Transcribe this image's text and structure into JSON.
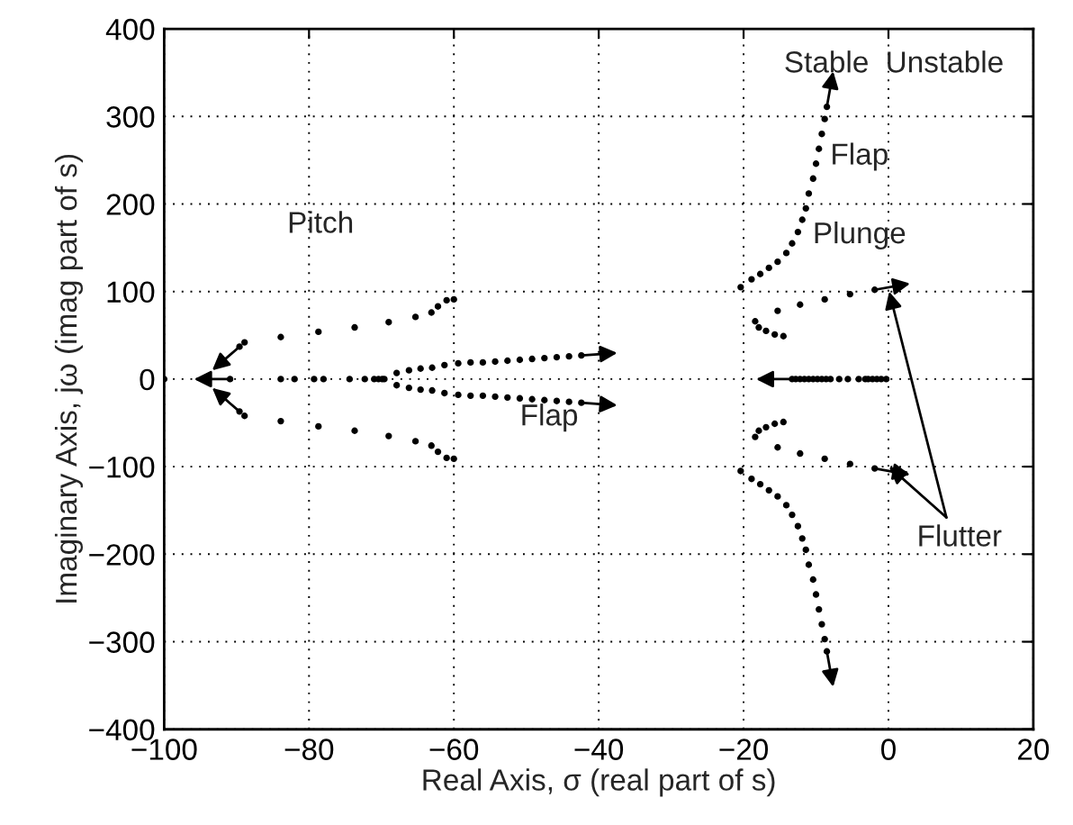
{
  "chart_data": {
    "type": "scatter",
    "xlabel": "Real Axis, σ (real part of s)",
    "ylabel": "Imaginary Axis, jω (imag part of s)",
    "xlim": [
      -100,
      20
    ],
    "ylim": [
      -400,
      400
    ],
    "xticks": [
      {
        "value": -100,
        "label": "−100"
      },
      {
        "value": -80,
        "label": "−80"
      },
      {
        "value": -60,
        "label": "−60"
      },
      {
        "value": -40,
        "label": "−40"
      },
      {
        "value": -20,
        "label": "−20"
      },
      0,
      20
    ],
    "yticks": [
      {
        "value": -400,
        "label": "−400"
      },
      {
        "value": -300,
        "label": "−300"
      },
      {
        "value": -200,
        "label": "−200"
      },
      {
        "value": -100,
        "label": "−100"
      },
      0,
      100,
      200,
      300,
      400
    ],
    "grid": true,
    "marker": "circle",
    "series": [
      {
        "color": "#000000",
        "x": [
          -60.0,
          -61.0,
          -62.2,
          -63.1,
          -65.3,
          -69.0,
          -73.7,
          -78.7,
          -83.9,
          -88.9,
          -89.6
        ],
        "values": [
          91,
          90,
          83,
          76,
          71,
          65,
          59,
          54,
          48,
          42,
          37
        ]
      },
      {
        "color": "#000000",
        "x": [
          -60.0,
          -61.0,
          -62.2,
          -63.1,
          -65.3,
          -69.0,
          -73.7,
          -78.7,
          -83.9,
          -88.9,
          -89.6
        ],
        "values": [
          -91,
          -90,
          -83,
          -76,
          -71,
          -65,
          -59,
          -54,
          -48,
          -42,
          -37
        ]
      },
      {
        "color": "#000000",
        "x": [
          -69.6,
          -69.9,
          -70.4,
          -71.0,
          -72.3,
          -74.4,
          -78.0,
          -79.3,
          -82.0,
          -83.9,
          -90.9
        ],
        "values": [
          0,
          0,
          0,
          0,
          0,
          0,
          0,
          0,
          0,
          0,
          0
        ]
      },
      {
        "color": "#000000",
        "x": [
          -100
        ],
        "values": [
          0
        ]
      },
      {
        "color": "#000000",
        "x": [
          -67.9,
          -66.2,
          -64.6,
          -63.0,
          -61.3,
          -59.4,
          -57.7,
          -56.0,
          -54.3,
          -52.6,
          -50.9,
          -49.2,
          -47.5,
          -45.8,
          -44.1,
          -42.4
        ],
        "values": [
          7,
          10,
          12,
          13,
          16,
          18,
          19,
          19,
          20,
          21,
          22,
          23,
          24,
          25,
          26,
          27
        ]
      },
      {
        "color": "#000000",
        "x": [
          -67.9,
          -66.2,
          -64.6,
          -63.0,
          -61.3,
          -59.4,
          -57.7,
          -56.0,
          -54.3,
          -52.6,
          -50.9,
          -49.2,
          -47.5,
          -45.8,
          -44.1,
          -42.4
        ],
        "values": [
          -7,
          -10,
          -12,
          -13,
          -16,
          -18,
          -19,
          -19,
          -20,
          -21,
          -22,
          -23,
          -24,
          -25,
          -26,
          -27
        ]
      },
      {
        "color": "#000000",
        "x": [
          -20.4,
          -18.9,
          -17.7,
          -16.5,
          -15.3,
          -14.1,
          -13.3,
          -12.5,
          -11.9,
          -11.4,
          -11.0,
          -10.4,
          -10.0,
          -9.6,
          -9.2,
          -8.8,
          -8.5
        ],
        "values": [
          105,
          114,
          120,
          127,
          134,
          144,
          155,
          168,
          182,
          195,
          212,
          229,
          246,
          263,
          280,
          297,
          311
        ]
      },
      {
        "color": "#000000",
        "x": [
          -20.4,
          -18.9,
          -17.7,
          -16.5,
          -15.3,
          -14.1,
          -13.3,
          -12.5,
          -11.9,
          -11.4,
          -11.0,
          -10.4,
          -10.0,
          -9.6,
          -9.2,
          -8.8,
          -8.5
        ],
        "values": [
          -105,
          -114,
          -120,
          -127,
          -134,
          -144,
          -155,
          -168,
          -182,
          -195,
          -212,
          -229,
          -246,
          -263,
          -280,
          -297,
          -311
        ]
      },
      {
        "color": "#000000",
        "x": [
          -14.5,
          -15.7,
          -16.9,
          -17.9,
          -18.4,
          -15.3,
          -12.2,
          -8.8,
          -5.3,
          -1.9
        ],
        "values": [
          49,
          51,
          55,
          59,
          66,
          78,
          85,
          91,
          97,
          102
        ]
      },
      {
        "color": "#000000",
        "x": [
          -14.5,
          -15.7,
          -16.9,
          -17.9,
          -18.4,
          -15.3,
          -12.2,
          -8.8,
          -5.3,
          -1.9
        ],
        "values": [
          -49,
          -51,
          -55,
          -59,
          -66,
          -78,
          -85,
          -91,
          -97,
          -102
        ]
      },
      {
        "color": "#000000",
        "x": [
          -0.3,
          -1.0,
          -1.6,
          -2.2,
          -2.8,
          -3.2,
          -4.1,
          -5.6,
          -6.8,
          -8.0,
          -8.6,
          -9.2,
          -9.8,
          -10.4,
          -11.0,
          -11.6,
          -12.2,
          -12.8,
          -13.3
        ],
        "values": [
          0,
          0,
          0,
          0,
          0,
          0,
          0,
          0,
          0,
          0,
          0,
          0,
          0,
          0,
          0,
          0,
          0,
          0,
          0
        ]
      }
    ],
    "annotations": [
      "Pitch",
      "Flap",
      "Flap",
      "Plunge",
      "Stable",
      "Unstable",
      "Flutter"
    ]
  }
}
